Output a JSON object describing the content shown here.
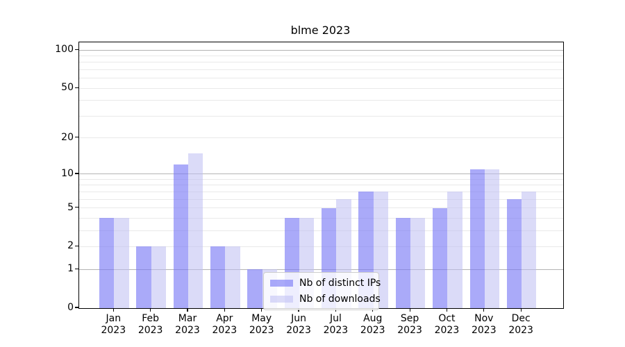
{
  "chart_data": {
    "type": "bar",
    "title": "blme 2023",
    "scale": "log1p",
    "ylim": [
      0,
      100
    ],
    "grid": "on",
    "legend_position": "lower center",
    "x_axis": {
      "months": [
        "Jan",
        "Feb",
        "Mar",
        "Apr",
        "May",
        "Jun",
        "Jul",
        "Aug",
        "Sep",
        "Oct",
        "Nov",
        "Dec"
      ],
      "year": "2023"
    },
    "y_ticks": [
      0,
      1,
      2,
      5,
      10,
      20,
      50,
      100
    ],
    "grid_major": [
      1,
      10,
      100
    ],
    "grid_minor": [
      2,
      3,
      4,
      5,
      6,
      7,
      8,
      9,
      20,
      30,
      40,
      50,
      60,
      70,
      80,
      90
    ],
    "series": [
      {
        "name": "Nb of distinct IPs",
        "color": "rgba(120,120,245,0.63)",
        "values": [
          4,
          2,
          12,
          2,
          1,
          4,
          5,
          7,
          4,
          5,
          11,
          6
        ]
      },
      {
        "name": "Nb of downloads",
        "color": "rgba(190,190,243,0.55)",
        "values": [
          4,
          2,
          15,
          2,
          1,
          4,
          6,
          7,
          4,
          7,
          11,
          7
        ]
      }
    ],
    "colors": {
      "grid_major": "#b3b3b3",
      "grid_minor": "#e9e9e9",
      "spine": "#000000",
      "legend_border": "#cccccc",
      "legend_bg": "rgba(255,255,255,0.8)",
      "text": "#000000"
    }
  }
}
